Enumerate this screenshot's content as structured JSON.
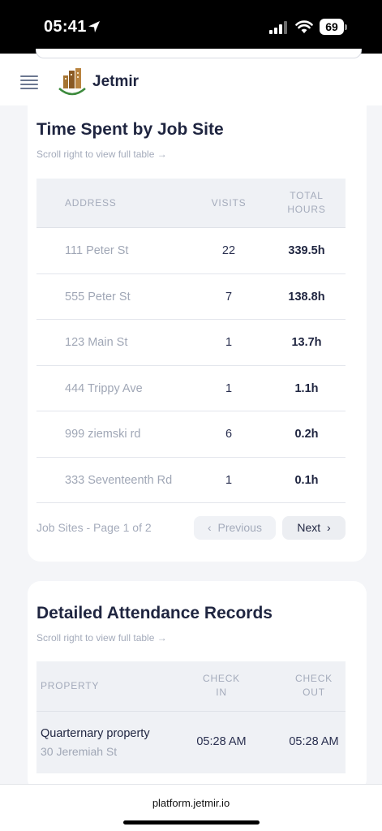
{
  "status_bar": {
    "time": "05:41",
    "battery": "69"
  },
  "header": {
    "brand": "Jetmir"
  },
  "job_sites": {
    "title": "Time Spent by Job Site",
    "scroll_hint": "Scroll right to view full table →",
    "columns": {
      "address": "ADDRESS",
      "visits": "VISITS",
      "total_hours_1": "TOTAL",
      "total_hours_2": "HOURS"
    },
    "rows": [
      {
        "address": "111 Peter St",
        "visits": "22",
        "hours": "339.5h"
      },
      {
        "address": "555 Peter St",
        "visits": "7",
        "hours": "138.8h"
      },
      {
        "address": "123 Main St",
        "visits": "1",
        "hours": "13.7h"
      },
      {
        "address": "444 Trippy Ave",
        "visits": "1",
        "hours": "1.1h"
      },
      {
        "address": "999 ziemski rd",
        "visits": "6",
        "hours": "0.2h"
      },
      {
        "address": "333 Seventeenth Rd",
        "visits": "1",
        "hours": "0.1h"
      }
    ],
    "pager": {
      "label": "Job Sites - Page 1 of 2",
      "previous": "Previous",
      "next": "Next"
    }
  },
  "attendance": {
    "title": "Detailed Attendance Records",
    "scroll_hint": "Scroll right to view full table →",
    "columns": {
      "property": "PROPERTY",
      "check_in_1": "CHECK",
      "check_in_2": "IN",
      "check_out_1": "CHECK",
      "check_out_2": "OUT"
    },
    "rows": [
      {
        "property": "Quarternary property",
        "address": "30 Jeremiah St",
        "check_in": "05:28 AM",
        "check_out": "05:28 AM"
      }
    ]
  },
  "browser": {
    "url": "platform.jetmir.io"
  }
}
